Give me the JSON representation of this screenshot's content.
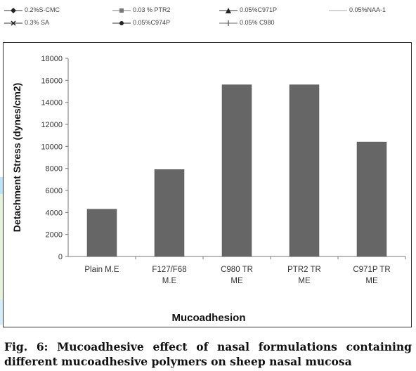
{
  "legend": {
    "items": [
      {
        "label": "0.2%S-CMC",
        "marker": "diamond"
      },
      {
        "label": "0.03 % PTR2",
        "marker": "square"
      },
      {
        "label": "0.05%C971P",
        "marker": "triangle"
      },
      {
        "label": "0.05%NAA-1",
        "marker": "none"
      },
      {
        "label": "0.3% SA",
        "marker": "cross"
      },
      {
        "label": "0.05%C974P",
        "marker": "star"
      },
      {
        "label": "0.05% C980",
        "marker": "plus"
      }
    ]
  },
  "chart_data": {
    "type": "bar",
    "categories": [
      "Plain M.E",
      "F127/F68 M.E",
      "C980 TR ME",
      "PTR2 TR ME",
      "C971P TR ME"
    ],
    "category_lines": [
      [
        "Plain M.E"
      ],
      [
        "F127/F68",
        "M.E"
      ],
      [
        "C980 TR",
        "ME"
      ],
      [
        "PTR2 TR",
        "ME"
      ],
      [
        "C971P TR",
        "ME"
      ]
    ],
    "values": [
      4300,
      7900,
      15600,
      15600,
      10400
    ],
    "xlabel": "Mucoadhesion",
    "ylabel": "Detachment Stress (dynes/cm2)",
    "ylim": [
      0,
      18000
    ],
    "yticks": [
      0,
      2000,
      4000,
      6000,
      8000,
      10000,
      12000,
      14000,
      16000,
      18000
    ],
    "grid": false,
    "bar_color": "#666666",
    "legend": "top"
  },
  "caption": {
    "line1": "Fig. 6: Mucoadhesive effect of nasal formulations containing",
    "line2": "different mucoadhesive polymers on sheep nasal mucosa"
  }
}
